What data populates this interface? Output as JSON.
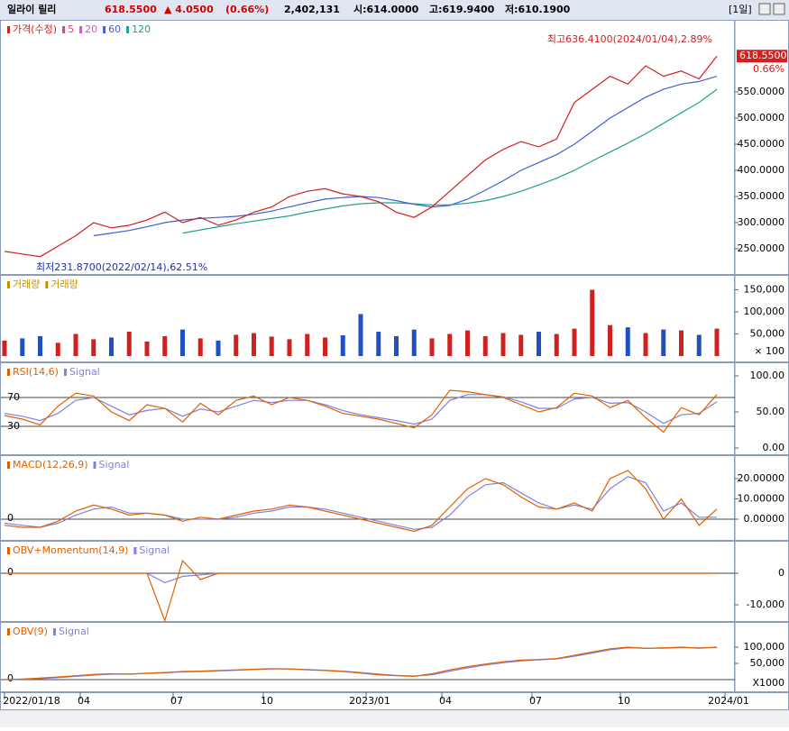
{
  "header": {
    "name": "일라이 릴리",
    "price": "618.5500",
    "change": "▲ 4.0500",
    "change_pct": "(0.66%)",
    "volume": "2,402,131",
    "open": "시:614.0000",
    "high": "고:619.9400",
    "low": "저:610.1900",
    "period": "[1일]"
  },
  "price_panel": {
    "legend": [
      {
        "name": "가격(수정)",
        "color": "#d02020"
      },
      {
        "name": "5",
        "color": "#e04080"
      },
      {
        "name": "20",
        "color": "#c060c0"
      },
      {
        "name": "60",
        "color": "#4060d0"
      },
      {
        "name": "120",
        "color": "#20a090"
      }
    ],
    "close": [
      245,
      240,
      235,
      255,
      275,
      300,
      290,
      295,
      305,
      320,
      300,
      310,
      295,
      305,
      320,
      330,
      350,
      360,
      365,
      355,
      350,
      340,
      320,
      310,
      330,
      360,
      390,
      420,
      440,
      455,
      445,
      460,
      530,
      555,
      580,
      565,
      600,
      580,
      590,
      575,
      618.55
    ],
    "ma60": [
      null,
      null,
      null,
      null,
      null,
      275,
      280,
      285,
      292,
      300,
      305,
      308,
      310,
      312,
      316,
      322,
      330,
      338,
      345,
      348,
      350,
      348,
      342,
      335,
      330,
      333,
      345,
      362,
      380,
      400,
      415,
      430,
      450,
      475,
      500,
      520,
      540,
      555,
      565,
      570,
      580
    ],
    "ma120": [
      null,
      null,
      null,
      null,
      null,
      null,
      null,
      null,
      null,
      null,
      280,
      286,
      292,
      298,
      303,
      308,
      313,
      320,
      326,
      332,
      336,
      338,
      338,
      336,
      334,
      334,
      337,
      342,
      350,
      360,
      372,
      385,
      400,
      418,
      435,
      452,
      470,
      490,
      510,
      530,
      555
    ],
    "yticks": [
      {
        "value": 550,
        "label": "550.0000"
      },
      {
        "value": 500,
        "label": "500.0000"
      },
      {
        "value": 450,
        "label": "450.0000"
      },
      {
        "value": 400,
        "label": "400.0000"
      },
      {
        "value": 350,
        "label": "350.0000"
      },
      {
        "value": 300,
        "label": "300.0000"
      },
      {
        "value": 250,
        "label": "250.0000"
      }
    ],
    "last_pct": "0.66%",
    "high_note": "최고636.4100(2024/01/04),2.89%",
    "low_note": "최저231.8700(2022/02/14),62.51%"
  },
  "volume_panel": {
    "legend": [
      {
        "name": "거래량",
        "color": "#c09000"
      },
      {
        "name": "거래량",
        "color": "#c09000"
      }
    ],
    "values": [
      35000,
      40000,
      45000,
      30000,
      50000,
      38000,
      42000,
      55000,
      33000,
      45000,
      60000,
      40000,
      35000,
      48000,
      52000,
      44000,
      38000,
      50000,
      42000,
      47000,
      95000,
      55000,
      45000,
      60000,
      40000,
      50000,
      58000,
      45000,
      52000,
      48000,
      55000,
      50000,
      62000,
      150000,
      70000,
      65000,
      52000,
      60000,
      58000,
      48000,
      62000
    ],
    "yticks": [
      {
        "value": 150000,
        "label": "150,000"
      },
      {
        "value": 100000,
        "label": "100,000"
      },
      {
        "value": 50000,
        "label": "50,000"
      }
    ],
    "unit": "× 100"
  },
  "rsi_panel": {
    "legend": [
      {
        "name": "RSI(14,6)",
        "color": "#e06000"
      },
      {
        "name": "Signal",
        "color": "#8080e0"
      }
    ],
    "rsi": [
      45,
      40,
      32,
      58,
      76,
      72,
      50,
      38,
      60,
      55,
      36,
      62,
      46,
      66,
      72,
      60,
      70,
      66,
      58,
      48,
      44,
      40,
      34,
      28,
      46,
      80,
      78,
      74,
      70,
      60,
      50,
      56,
      76,
      72,
      56,
      66,
      42,
      22,
      56,
      46,
      74
    ],
    "signal": [
      48,
      44,
      38,
      48,
      66,
      70,
      58,
      46,
      52,
      55,
      44,
      54,
      50,
      58,
      66,
      63,
      66,
      66,
      60,
      52,
      46,
      42,
      38,
      33,
      40,
      66,
      74,
      74,
      71,
      64,
      55,
      55,
      68,
      70,
      62,
      63,
      50,
      34,
      46,
      48,
      64
    ],
    "levels": [
      70,
      30
    ],
    "yticks": [
      {
        "value": 100,
        "label": "100.00"
      },
      {
        "value": 50,
        "label": "50.00"
      },
      {
        "value": 0,
        "label": "0.00"
      }
    ]
  },
  "macd_panel": {
    "legend": [
      {
        "name": "MACD(12,26,9)",
        "color": "#e06000"
      },
      {
        "name": "Signal",
        "color": "#8080e0"
      }
    ],
    "macd": [
      -3,
      -4,
      -4,
      -1,
      4,
      7,
      5,
      2,
      3,
      2,
      -1,
      1,
      0,
      2,
      4,
      5,
      7,
      6,
      4,
      2,
      0,
      -2,
      -4,
      -6,
      -3,
      6,
      15,
      20,
      17,
      11,
      6,
      5,
      8,
      4,
      20,
      24,
      15,
      0,
      10,
      -3,
      5
    ],
    "signal": [
      -2,
      -3,
      -4,
      -2,
      2,
      5,
      6,
      3,
      3,
      2,
      0,
      0,
      0,
      1,
      3,
      4,
      6,
      6,
      5,
      3,
      1,
      -1,
      -3,
      -5,
      -4,
      2,
      11,
      17,
      18,
      13,
      8,
      5,
      7,
      5,
      15,
      21,
      18,
      4,
      8,
      1,
      1
    ],
    "zero": 0,
    "yticks": [
      {
        "value": 20,
        "label": "20.00000"
      },
      {
        "value": 10,
        "label": "10.00000"
      },
      {
        "value": 0,
        "label": "0.00000"
      }
    ]
  },
  "obvm_panel": {
    "legend": [
      {
        "name": "OBV+Momentum(14,9)",
        "color": "#e06000"
      },
      {
        "name": "Signal",
        "color": "#8080e0"
      }
    ],
    "values": [
      0,
      0,
      0,
      0,
      0,
      0,
      0,
      0,
      0,
      -15000,
      4000,
      -2000,
      0,
      0,
      0,
      0,
      0,
      0,
      0,
      0,
      0,
      0,
      0,
      0,
      0,
      0,
      0,
      0,
      0,
      0,
      0,
      0,
      0,
      0,
      0,
      0,
      0,
      0,
      0,
      0,
      0
    ],
    "signal": [
      0,
      0,
      0,
      0,
      0,
      0,
      0,
      0,
      0,
      -3000,
      -1000,
      -500,
      0,
      0,
      0,
      0,
      0,
      0,
      0,
      0,
      0,
      0,
      0,
      0,
      0,
      0,
      0,
      0,
      0,
      0,
      0,
      0,
      0,
      0,
      0,
      0,
      0,
      0,
      0,
      0,
      0
    ],
    "zero": 0,
    "yticks": [
      0,
      {
        "value": -10000,
        "label": "-10,000"
      }
    ]
  },
  "obv_panel": {
    "legend": [
      {
        "name": "OBV(9)",
        "color": "#e06000"
      },
      {
        "name": "Signal",
        "color": "#8080e0"
      }
    ],
    "values": [
      0,
      2000,
      5000,
      8000,
      12000,
      16000,
      18000,
      17000,
      20000,
      22000,
      25000,
      26000,
      28000,
      30000,
      32000,
      34000,
      33000,
      30000,
      28000,
      25000,
      20000,
      15000,
      12000,
      10000,
      18000,
      30000,
      40000,
      48000,
      55000,
      60000,
      62000,
      65000,
      75000,
      85000,
      95000,
      100000,
      96000,
      98000,
      100000,
      97000,
      100000
    ],
    "signal": [
      0,
      1000,
      3000,
      6000,
      10000,
      14000,
      17000,
      17000,
      19000,
      21000,
      24000,
      25000,
      27000,
      29000,
      31000,
      33000,
      33000,
      31000,
      29000,
      26000,
      22000,
      17000,
      13000,
      11000,
      15000,
      26000,
      36000,
      45000,
      52000,
      58000,
      61000,
      64000,
      72000,
      82000,
      92000,
      98000,
      97000,
      97000,
      99000,
      98000,
      99000
    ],
    "zero": 0,
    "yticks": [
      {
        "value": 100000,
        "label": "100,000"
      },
      {
        "value": 50000,
        "label": "50,000"
      }
    ],
    "unit": "X1000"
  },
  "x_labels": [
    "2022/01/18",
    "04",
    "07",
    "10",
    "2023/01",
    "04",
    "07",
    "10",
    "2024/01"
  ]
}
